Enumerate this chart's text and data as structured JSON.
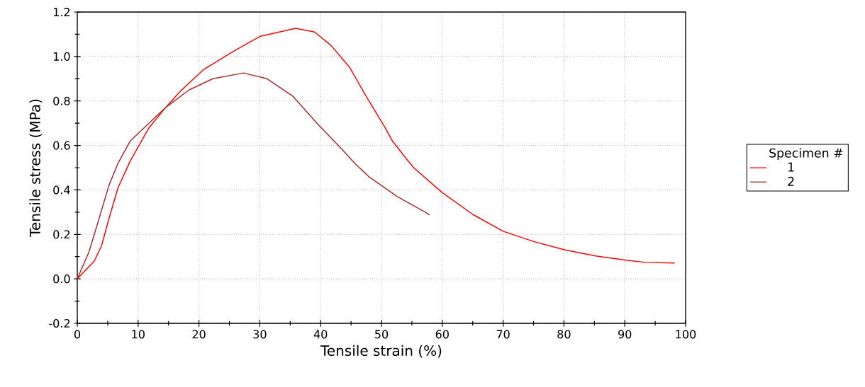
{
  "chart_data": {
    "type": "line",
    "xlabel": "Tensile strain (%)",
    "ylabel": "Tensile stress (MPa)",
    "legend_title": "Specimen #",
    "xlim": [
      0,
      100
    ],
    "ylim": [
      -0.2,
      1.2
    ],
    "xticks": [
      0,
      10,
      20,
      30,
      40,
      50,
      60,
      70,
      80,
      90,
      100
    ],
    "yticks": [
      {
        "value": -0.2,
        "label": "-0.2"
      },
      {
        "value": 0,
        "label": "0.0"
      },
      {
        "value": 0.2,
        "label": "0.2"
      },
      {
        "value": 0.4,
        "label": "0.4"
      },
      {
        "value": 0.6,
        "label": "0.6"
      },
      {
        "value": 0.8,
        "label": "0.8"
      },
      {
        "value": 1.0,
        "label": "1.0"
      },
      {
        "value": 1.2,
        "label": "1.2"
      }
    ],
    "grid": true,
    "legend": "right",
    "marker": "none",
    "line_style": "solid",
    "series": [
      {
        "name": "1",
        "color": "#ff0000",
        "x": [
          0,
          2.8,
          4.0,
          5.2,
          6.7,
          8.7,
          11.8,
          14.5,
          16.8,
          20.7,
          26.1,
          30.0,
          35.9,
          39.0,
          41.7,
          44.8,
          47.5,
          50.6,
          51.8,
          54.1,
          55.3,
          59.9,
          65.0,
          70.0,
          75.1,
          80.2,
          85.2,
          90.2,
          93.4,
          98.2
        ],
        "values": [
          0,
          0.08,
          0.15,
          0.27,
          0.41,
          0.53,
          0.68,
          0.77,
          0.84,
          0.94,
          1.03,
          1.09,
          1.127,
          1.11,
          1.05,
          0.95,
          0.82,
          0.68,
          0.62,
          0.54,
          0.5,
          0.39,
          0.29,
          0.214,
          0.167,
          0.13,
          0.103,
          0.084,
          0.074,
          0.071
        ]
      },
      {
        "name": "2",
        "color": "#a52a2a",
        "x": [
          0,
          1.9,
          2.8,
          4.0,
          5.2,
          6.7,
          8.7,
          11.4,
          14.5,
          18.4,
          22.3,
          27.3,
          31.2,
          35.5,
          39.4,
          43.6,
          45.6,
          47.9,
          52.6,
          57.2,
          57.9
        ],
        "values": [
          0,
          0.12,
          0.2,
          0.31,
          0.42,
          0.52,
          0.62,
          0.69,
          0.77,
          0.85,
          0.9,
          0.926,
          0.9,
          0.82,
          0.7,
          0.58,
          0.52,
          0.46,
          0.37,
          0.3,
          0.287
        ]
      }
    ]
  }
}
